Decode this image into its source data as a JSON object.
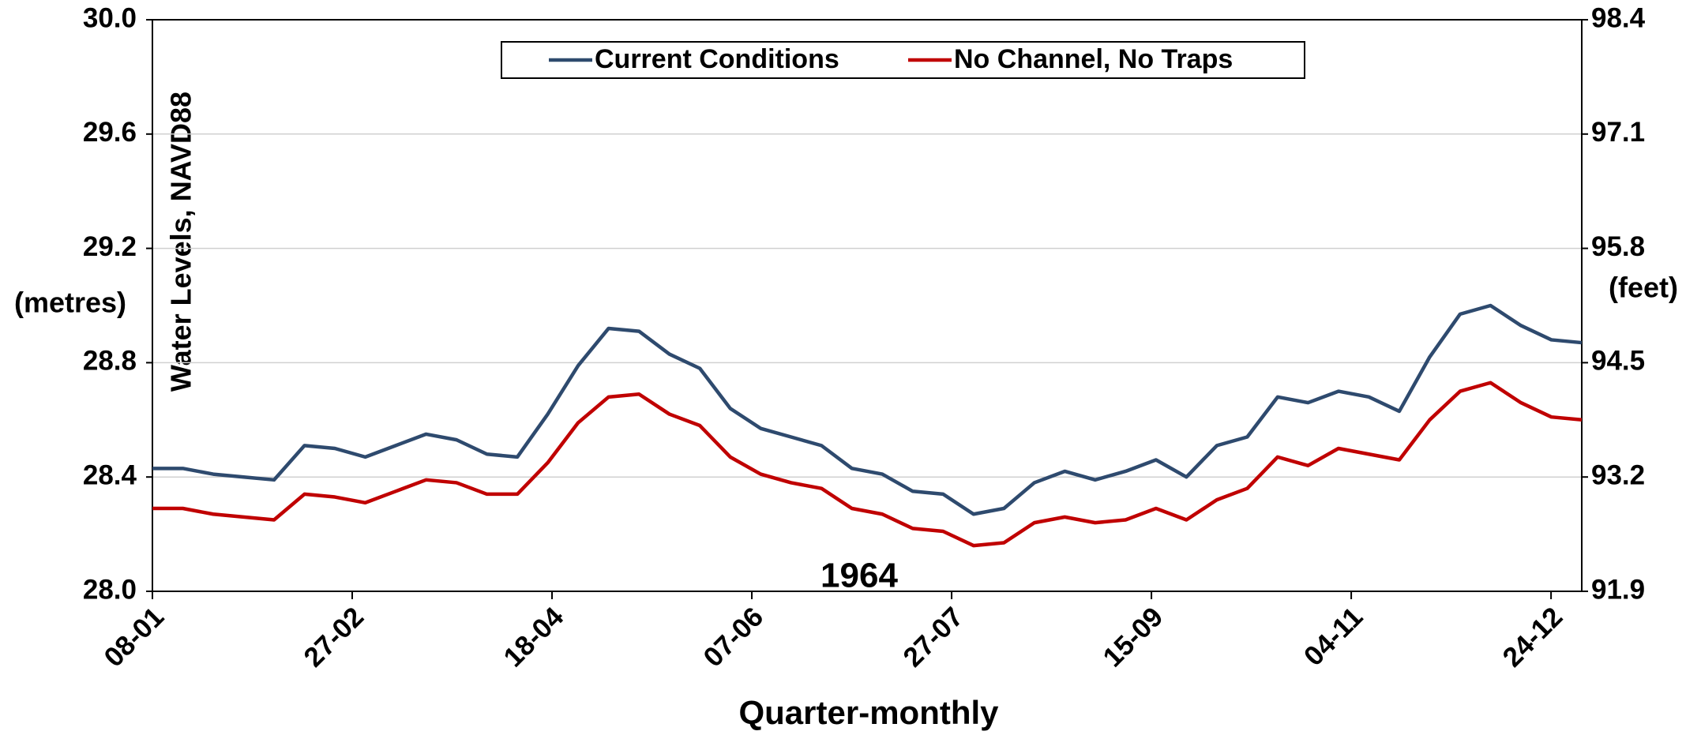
{
  "chart_data": {
    "type": "line",
    "y_label": "Water Levels, NAVD88",
    "y_unit": "(metres)",
    "y2_unit": "(feet)",
    "x_label": "Quarter-monthly",
    "annotation": "1964",
    "x": [
      0,
      1,
      2,
      3,
      4,
      5,
      6,
      7,
      8,
      9,
      10,
      11,
      12,
      13,
      14,
      15,
      16,
      17,
      18,
      19,
      20,
      21,
      22,
      23,
      24,
      25,
      26,
      27,
      28,
      29,
      30,
      31,
      32,
      33,
      34,
      35,
      36,
      37,
      38,
      39,
      40,
      41,
      42,
      43,
      44,
      45,
      46,
      47
    ],
    "xlim": [
      0,
      47
    ],
    "xticks": [
      {
        "value": 0,
        "label": "08-01"
      },
      {
        "value": 6.57,
        "label": "27-02"
      },
      {
        "value": 13.14,
        "label": "18-04"
      },
      {
        "value": 19.71,
        "label": "07-06"
      },
      {
        "value": 26.28,
        "label": "27-07"
      },
      {
        "value": 32.85,
        "label": "15-09"
      },
      {
        "value": 39.42,
        "label": "04-11"
      },
      {
        "value": 45.99,
        "label": "24-12"
      }
    ],
    "ylim": [
      28.0,
      30.0
    ],
    "yticks": [
      {
        "value": 28,
        "label": "28.0"
      },
      28.4,
      28.8,
      29.2,
      29.6,
      {
        "value": 30,
        "label": "30.0"
      }
    ],
    "y2lim": [
      91.9,
      98.4
    ],
    "y2ticks": [
      91.9,
      93.2,
      94.5,
      95.8,
      97.1,
      98.4
    ],
    "grid": true,
    "legend": "top",
    "series": [
      {
        "name": "Current Conditions",
        "color": "#2e4a6e",
        "values": [
          28.43,
          28.43,
          28.41,
          28.4,
          28.39,
          28.51,
          28.5,
          28.47,
          28.51,
          28.55,
          28.53,
          28.48,
          28.47,
          28.62,
          28.79,
          28.92,
          28.91,
          28.83,
          28.78,
          28.64,
          28.57,
          28.54,
          28.51,
          28.43,
          28.41,
          28.35,
          28.34,
          28.27,
          28.29,
          28.38,
          28.42,
          28.39,
          28.42,
          28.46,
          28.4,
          28.51,
          28.54,
          28.68,
          28.66,
          28.7,
          28.68,
          28.63,
          28.82,
          28.97,
          29.0,
          28.93,
          28.88,
          28.87
        ]
      },
      {
        "name": "No Channel, No Traps",
        "color": "#c00000",
        "values": [
          28.29,
          28.29,
          28.27,
          28.26,
          28.25,
          28.34,
          28.33,
          28.31,
          28.35,
          28.39,
          28.38,
          28.34,
          28.34,
          28.45,
          28.59,
          28.68,
          28.69,
          28.62,
          28.58,
          28.47,
          28.41,
          28.38,
          28.36,
          28.29,
          28.27,
          28.22,
          28.21,
          28.16,
          28.17,
          28.24,
          28.26,
          28.24,
          28.25,
          28.29,
          28.25,
          28.32,
          28.36,
          28.47,
          28.44,
          28.5,
          28.48,
          28.46,
          28.6,
          28.7,
          28.73,
          28.66,
          28.61,
          28.6
        ]
      }
    ]
  }
}
